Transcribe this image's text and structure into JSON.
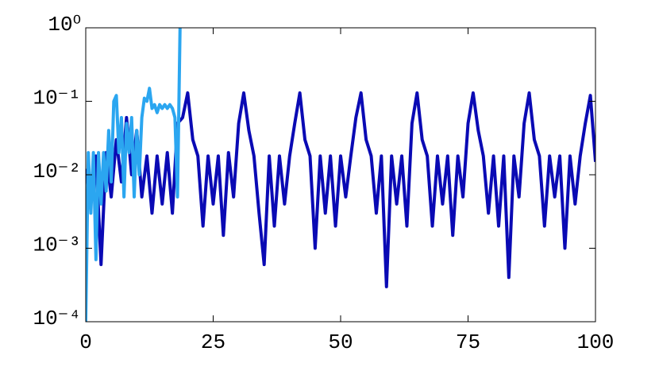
{
  "chart_data": {
    "type": "line",
    "yscale": "log",
    "xlim": [
      0,
      100
    ],
    "xticks": [
      0,
      25,
      50,
      75,
      100
    ],
    "ylim": [
      0.0001,
      1
    ],
    "yticks": [
      {
        "value": 0.0001,
        "label": "10⁻⁴"
      },
      {
        "value": 0.001,
        "label": "10⁻³"
      },
      {
        "value": 0.01,
        "label": "10⁻²"
      },
      {
        "value": 0.1,
        "label": "10⁻¹"
      },
      {
        "value": 1,
        "label": "10⁰"
      }
    ],
    "series": [
      {
        "color": "#0a0ab4",
        "x": [
          0,
          1,
          2,
          3,
          4,
          5,
          6,
          7,
          8,
          9,
          10,
          11,
          12,
          13,
          14,
          15,
          16,
          17,
          18,
          19,
          20,
          21,
          22,
          23,
          24,
          25,
          26,
          27,
          28,
          29,
          30,
          31,
          32,
          33,
          34,
          35,
          36,
          37,
          38,
          39,
          40,
          41,
          42,
          43,
          44,
          45,
          46,
          47,
          48,
          49,
          50,
          51,
          52,
          53,
          54,
          55,
          56,
          57,
          58,
          59,
          60,
          61,
          62,
          63,
          64,
          65,
          66,
          67,
          68,
          69,
          70,
          71,
          72,
          73,
          74,
          75,
          76,
          77,
          78,
          79,
          80,
          81,
          82,
          83,
          84,
          85,
          86,
          87,
          88,
          89,
          90,
          91,
          92,
          93,
          94,
          95,
          96,
          97,
          98,
          99,
          100
        ],
        "values": [
          0.012,
          0.004,
          0.018,
          0.0006,
          0.02,
          0.005,
          0.03,
          0.008,
          0.06,
          0.01,
          0.04,
          0.005,
          0.018,
          0.003,
          0.018,
          0.004,
          0.02,
          0.003,
          0.05,
          0.06,
          0.13,
          0.03,
          0.018,
          0.002,
          0.018,
          0.004,
          0.018,
          0.0015,
          0.02,
          0.005,
          0.05,
          0.13,
          0.04,
          0.018,
          0.003,
          0.0006,
          0.018,
          0.002,
          0.018,
          0.004,
          0.018,
          0.05,
          0.13,
          0.03,
          0.018,
          0.001,
          0.018,
          0.003,
          0.018,
          0.002,
          0.018,
          0.005,
          0.018,
          0.06,
          0.13,
          0.03,
          0.018,
          0.003,
          0.018,
          0.0003,
          0.018,
          0.004,
          0.018,
          0.002,
          0.05,
          0.13,
          0.03,
          0.018,
          0.002,
          0.018,
          0.004,
          0.018,
          0.0015,
          0.018,
          0.005,
          0.05,
          0.13,
          0.04,
          0.018,
          0.003,
          0.018,
          0.002,
          0.018,
          0.0004,
          0.018,
          0.005,
          0.05,
          0.13,
          0.03,
          0.018,
          0.002,
          0.018,
          0.005,
          0.018,
          0.001,
          0.018,
          0.004,
          0.018,
          0.05,
          0.12,
          0.015
        ]
      },
      {
        "color": "#2ba6f0",
        "x": [
          0,
          0.5,
          1,
          1.5,
          2,
          2.5,
          3,
          3.5,
          4,
          4.5,
          5,
          5.5,
          6,
          6.5,
          7,
          7.5,
          8,
          8.5,
          9,
          9.5,
          10,
          10.5,
          11,
          11.5,
          12,
          12.5,
          13,
          13.5,
          14,
          14.5,
          15,
          15.5,
          16,
          16.5,
          17,
          17.5,
          18,
          18.5
        ],
        "values": [
          0.0001,
          0.02,
          0.003,
          0.02,
          0.0007,
          0.02,
          0.004,
          0.02,
          0.006,
          0.04,
          0.008,
          0.1,
          0.12,
          0.02,
          0.06,
          0.005,
          0.05,
          0.02,
          0.06,
          0.005,
          0.04,
          0.01,
          0.06,
          0.11,
          0.1,
          0.15,
          0.08,
          0.09,
          0.07,
          0.09,
          0.08,
          0.09,
          0.08,
          0.09,
          0.08,
          0.06,
          0.005,
          1
        ]
      }
    ]
  }
}
